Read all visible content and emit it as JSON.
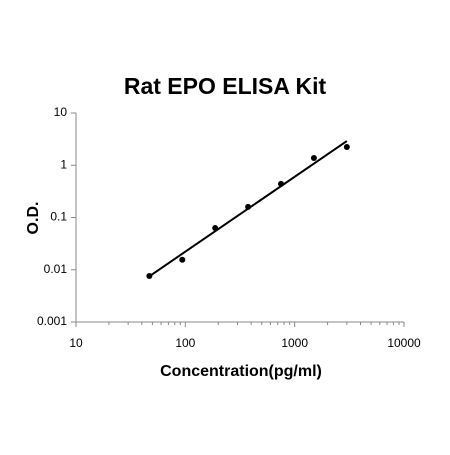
{
  "chart_data": {
    "type": "scatter",
    "title": "Rat EPO ELISA Kit",
    "x_label": "Concentration(pg/ml)",
    "y_label": "O.D.",
    "x": [
      46.875,
      93.75,
      187.5,
      375,
      750,
      1500,
      3000
    ],
    "values": [
      0.0076,
      0.0155,
      0.063,
      0.16,
      0.44,
      1.38,
      2.24
    ],
    "color": "#000000",
    "trendline": {
      "x": [
        46.875,
        3000
      ],
      "y": [
        0.0075,
        2.9
      ]
    },
    "xlim": [
      10,
      10000
    ],
    "ylim": [
      0.001,
      10
    ],
    "xticks": [
      10,
      100,
      1000,
      10000
    ],
    "yticks": [
      0.001,
      0.01,
      0.1,
      1,
      10
    ],
    "log_x": true,
    "log_y": true,
    "grid": false
  }
}
